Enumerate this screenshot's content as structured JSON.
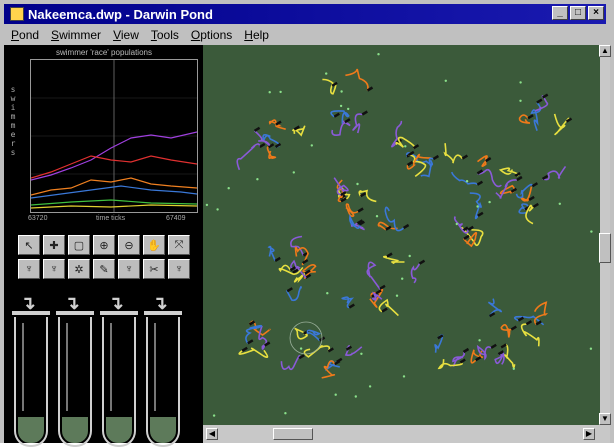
{
  "window": {
    "title": "Nakeemca.dwp - Darwin Pond"
  },
  "title_buttons": [
    "_",
    "□",
    "×"
  ],
  "menu": [
    {
      "label": "Pond",
      "accel": "P"
    },
    {
      "label": "Swimmer",
      "accel": "S"
    },
    {
      "label": "View",
      "accel": "V"
    },
    {
      "label": "Tools",
      "accel": "T"
    },
    {
      "label": "Options",
      "accel": "O"
    },
    {
      "label": "Help",
      "accel": "H"
    }
  ],
  "graph": {
    "title": "swimmer 'race' populations",
    "y_label": "s w i m m e r s",
    "x_left": "63720",
    "x_mid": "time ticks",
    "x_right": "67409"
  },
  "tools": [
    {
      "name": "pointer-tool-icon",
      "glyph": "↖"
    },
    {
      "name": "plus-tool-icon",
      "glyph": "✚"
    },
    {
      "name": "select-rect-tool-icon",
      "glyph": "▢"
    },
    {
      "name": "zoom-in-tool-icon",
      "glyph": "⊕"
    },
    {
      "name": "zoom-out-tool-icon",
      "glyph": "⊖"
    },
    {
      "name": "hand-tool-icon",
      "glyph": "✋"
    },
    {
      "name": "move-tool-icon",
      "glyph": "⤧"
    },
    {
      "name": "swimmer-tool-1-icon",
      "glyph": "♆"
    },
    {
      "name": "swimmer-tool-2-icon",
      "glyph": "♆"
    },
    {
      "name": "swimmer-tool-3-icon",
      "glyph": "✲"
    },
    {
      "name": "swimmer-tool-4-icon",
      "glyph": "✎"
    },
    {
      "name": "swimmer-tool-5-icon",
      "glyph": "♆"
    },
    {
      "name": "swimmer-tool-6-icon",
      "glyph": "✂"
    },
    {
      "name": "swimmer-tool-7-icon",
      "glyph": "♆"
    }
  ],
  "tubes": {
    "count": 4,
    "arrow_glyph": "↴"
  },
  "colors": {
    "pond_bg": "#3b5a3a",
    "title_bar": "#00008a",
    "swimmer_orange": "#f07a1a",
    "swimmer_purple": "#8a5ad8",
    "swimmer_blue": "#3a78d8",
    "swimmer_yellow": "#e8e040",
    "food_green": "#8ae08a"
  }
}
